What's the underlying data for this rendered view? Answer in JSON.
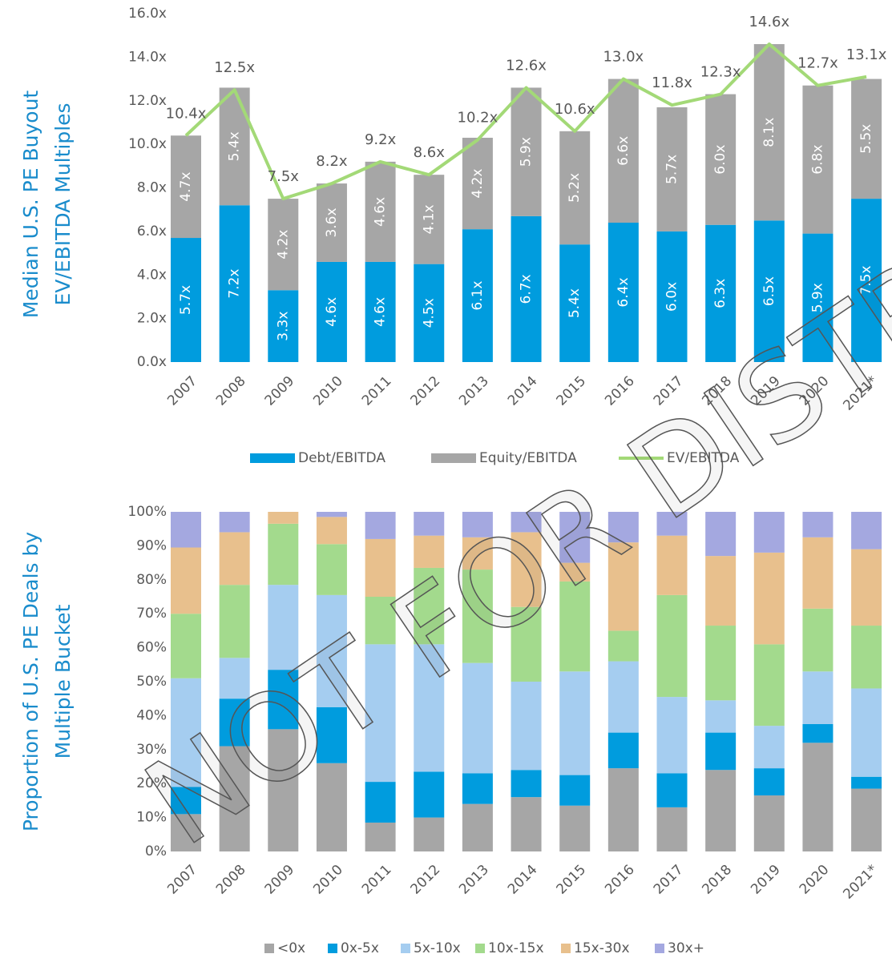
{
  "chart_data": [
    {
      "type": "bar",
      "stacked": true,
      "y_label": [
        "Median U.S. PE Buyout",
        "EV/EBITDA Multiples"
      ],
      "categories": [
        "2007",
        "2008",
        "2009",
        "2010",
        "2011",
        "2012",
        "2013",
        "2014",
        "2015",
        "2016",
        "2017",
        "2018",
        "2019",
        "2020",
        "2021*"
      ],
      "ylim": [
        0,
        16
      ],
      "yticks": [
        {
          "value": 0,
          "label": "0.0x"
        },
        {
          "value": 2,
          "label": "2.0x"
        },
        {
          "value": 4,
          "label": "4.0x"
        },
        {
          "value": 6,
          "label": "6.0x"
        },
        {
          "value": 8,
          "label": "8.0x"
        },
        {
          "value": 10,
          "label": "10.0x"
        },
        {
          "value": 12,
          "label": "12.0x"
        },
        {
          "value": 14,
          "label": "14.0x"
        },
        {
          "value": 16,
          "label": "16.0x"
        }
      ],
      "series": [
        {
          "name": "Debt/EBITDA",
          "color": "#009cde",
          "values": [
            5.7,
            7.2,
            3.3,
            4.6,
            4.6,
            4.5,
            6.1,
            6.7,
            5.4,
            6.4,
            6.0,
            6.3,
            6.5,
            5.9,
            7.5
          ],
          "value_labels": [
            "5.7x",
            "7.2x",
            "3.3x",
            "4.6x",
            "4.6x",
            "4.5x",
            "6.1x",
            "6.7x",
            "5.4x",
            "6.4x",
            "6.0x",
            "6.3x",
            "6.5x",
            "5.9x",
            "7.5x"
          ]
        },
        {
          "name": "Equity/EBITDA",
          "color": "#a6a6a6",
          "values": [
            4.7,
            5.4,
            4.2,
            3.6,
            4.6,
            4.1,
            4.2,
            5.9,
            5.2,
            6.6,
            5.7,
            6.0,
            8.1,
            6.8,
            5.5
          ],
          "value_labels": [
            "4.7x",
            "5.4x",
            "4.2x",
            "3.6x",
            "4.6x",
            "4.1x",
            "4.2x",
            "5.9x",
            "5.2x",
            "6.6x",
            "5.7x",
            "6.0x",
            "8.1x",
            "6.8x",
            "5.5x"
          ]
        },
        {
          "name": "EV/EBITDA",
          "type": "line",
          "color": "#a3d977",
          "values": [
            10.4,
            12.5,
            7.5,
            8.2,
            9.2,
            8.6,
            10.2,
            12.6,
            10.6,
            13.0,
            11.8,
            12.3,
            14.6,
            12.7,
            13.1
          ],
          "value_labels": [
            "10.4x",
            "12.5x",
            "7.5x",
            "8.2x",
            "9.2x",
            "8.6x",
            "10.2x",
            "12.6x",
            "10.6x",
            "13.0x",
            "11.8x",
            "12.3x",
            "14.6x",
            "12.7x",
            "13.1x"
          ]
        }
      ]
    },
    {
      "type": "bar",
      "stacked": true,
      "y_label": [
        "Proportion of U.S. PE Deals by",
        "Multiple Bucket"
      ],
      "categories": [
        "2007",
        "2008",
        "2009",
        "2010",
        "2011",
        "2012",
        "2013",
        "2014",
        "2015",
        "2016",
        "2017",
        "2018",
        "2019",
        "2020",
        "2021*"
      ],
      "ylim": [
        0,
        100
      ],
      "yticks": [
        {
          "value": 0,
          "label": "0%"
        },
        {
          "value": 10,
          "label": "10%"
        },
        {
          "value": 20,
          "label": "20%"
        },
        {
          "value": 30,
          "label": "30%"
        },
        {
          "value": 40,
          "label": "40%"
        },
        {
          "value": 50,
          "label": "50%"
        },
        {
          "value": 60,
          "label": "60%"
        },
        {
          "value": 70,
          "label": "70%"
        },
        {
          "value": 80,
          "label": "80%"
        },
        {
          "value": 90,
          "label": "90%"
        },
        {
          "value": 100,
          "label": "100%"
        }
      ],
      "series": [
        {
          "name": "<0x",
          "color": "#a6a6a6",
          "values": [
            11,
            31,
            36,
            26,
            8.5,
            10,
            14,
            16,
            13.5,
            24.5,
            13,
            24,
            16.5,
            32,
            18.5
          ]
        },
        {
          "name": "0x-5x",
          "color": "#009cde",
          "values": [
            8,
            14,
            17.5,
            16.5,
            12,
            13.5,
            9,
            8,
            9,
            10.5,
            10,
            11,
            8,
            5.5,
            3.5
          ]
        },
        {
          "name": "5x-10x",
          "color": "#a5cdf0",
          "values": [
            32,
            12,
            25,
            33,
            40.5,
            37.5,
            32.5,
            26,
            30.5,
            21,
            22.5,
            9.5,
            12.5,
            15.5,
            26
          ]
        },
        {
          "name": "10x-15x",
          "color": "#a3da8d",
          "values": [
            19,
            21.5,
            18,
            15,
            14,
            22.5,
            27.5,
            22,
            26.5,
            9,
            30,
            22,
            24,
            18.5,
            18.5
          ]
        },
        {
          "name": "15x-30x",
          "color": "#e8c08d",
          "values": [
            19.5,
            15.5,
            3.5,
            8,
            17,
            9.5,
            9.5,
            22,
            5.5,
            26,
            17.5,
            20.5,
            27,
            21,
            22.5
          ]
        },
        {
          "name": "30x+",
          "color": "#a4a8e0",
          "values": [
            10.5,
            6,
            0,
            1.5,
            8,
            7,
            7.5,
            6,
            15,
            9,
            7,
            13,
            12,
            7.5,
            11
          ]
        }
      ]
    }
  ],
  "watermark": "NOT FOR DISTRIBUTION"
}
